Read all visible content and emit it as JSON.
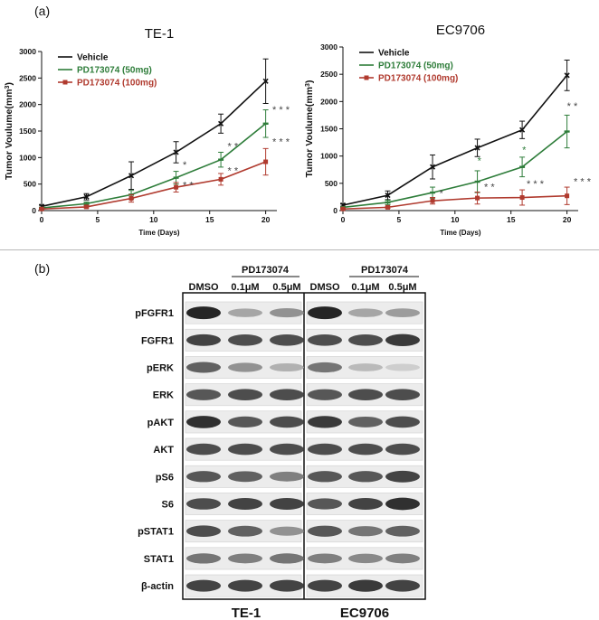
{
  "panel_a_label": "(a)",
  "panel_b_label": "(b)",
  "chart_data": [
    {
      "type": "line",
      "title": "TE-1",
      "xlabel": "Time (Days)",
      "ylabel_main": "Tumor Voulume(mm",
      "ylabel_sup": "3",
      "ylabel_end": ")",
      "xlim": [
        0,
        21
      ],
      "ylim": [
        0,
        3000
      ],
      "xticks": [
        0,
        5,
        10,
        15,
        20
      ],
      "yticks": [
        0,
        500,
        1000,
        1500,
        2000,
        2500,
        3000
      ],
      "x": [
        0,
        4,
        8,
        12,
        16,
        20
      ],
      "series": [
        {
          "name": "Vehicle",
          "color": "#111111",
          "marker": "x",
          "values": [
            80,
            260,
            660,
            1100,
            1640,
            2440
          ],
          "errors": [
            20,
            60,
            260,
            200,
            180,
            420
          ]
        },
        {
          "name": "PD173074 (50mg)",
          "color": "#2e7d3a",
          "marker": "bar",
          "values": [
            50,
            130,
            300,
            620,
            960,
            1640
          ],
          "errors": [
            15,
            30,
            80,
            120,
            140,
            260
          ]
        },
        {
          "name": "PD173074 (100mg)",
          "color": "#b03a2e",
          "marker": "square",
          "values": [
            30,
            70,
            230,
            440,
            590,
            920
          ],
          "errors": [
            10,
            20,
            70,
            90,
            110,
            250
          ]
        }
      ],
      "annotations": [
        {
          "x": 12.6,
          "y": 800,
          "text": "*",
          "color": "#444444"
        },
        {
          "x": 12.6,
          "y": 420,
          "text": "* *",
          "color": "#444444"
        },
        {
          "x": 16.6,
          "y": 1150,
          "text": "* *",
          "color": "#444444"
        },
        {
          "x": 16.6,
          "y": 690,
          "text": "* *",
          "color": "#444444"
        },
        {
          "x": 20.6,
          "y": 1840,
          "text": "* * *",
          "color": "#444444"
        },
        {
          "x": 20.6,
          "y": 1240,
          "text": "* * *",
          "color": "#444444"
        }
      ]
    },
    {
      "type": "line",
      "title": "EC9706",
      "xlabel": "Time (Days)",
      "ylabel_main": "Tumor Voulume(mm",
      "ylabel_sup": "3",
      "ylabel_end": ")",
      "xlim": [
        0,
        21
      ],
      "ylim": [
        0,
        3000
      ],
      "xticks": [
        0,
        5,
        10,
        15,
        20
      ],
      "yticks": [
        0,
        500,
        1000,
        1500,
        2000,
        2500,
        3000
      ],
      "x": [
        0,
        4,
        8,
        12,
        16,
        20
      ],
      "series": [
        {
          "name": "Vehicle",
          "color": "#111111",
          "marker": "x",
          "values": [
            100,
            280,
            800,
            1150,
            1480,
            2480
          ],
          "errors": [
            20,
            80,
            220,
            160,
            160,
            280
          ]
        },
        {
          "name": "PD173074 (50mg)",
          "color": "#2e7d3a",
          "marker": "bar",
          "values": [
            60,
            150,
            330,
            530,
            800,
            1450
          ],
          "errors": [
            15,
            40,
            100,
            200,
            180,
            300
          ]
        },
        {
          "name": "PD173074 (100mg)",
          "color": "#b03a2e",
          "marker": "square",
          "values": [
            30,
            60,
            180,
            230,
            240,
            270
          ],
          "errors": [
            10,
            20,
            60,
            110,
            140,
            160
          ]
        }
      ],
      "annotations": [
        {
          "x": 12.0,
          "y": 850,
          "text": "*",
          "color": "#2e7d3a"
        },
        {
          "x": 12.6,
          "y": 370,
          "text": "* *",
          "color": "#444444"
        },
        {
          "x": 8.6,
          "y": 260,
          "text": "*",
          "color": "#444444"
        },
        {
          "x": 16.0,
          "y": 1050,
          "text": "*",
          "color": "#2e7d3a"
        },
        {
          "x": 16.4,
          "y": 430,
          "text": "* * *",
          "color": "#444444"
        },
        {
          "x": 20.0,
          "y": 1860,
          "text": "* *",
          "color": "#444444"
        },
        {
          "x": 20.6,
          "y": 470,
          "text": "* * *",
          "color": "#444444"
        }
      ]
    }
  ],
  "blot": {
    "header_group": "PD173074",
    "lanes": [
      "DMSO",
      "0.1μM",
      "0.5μM",
      "DMSO",
      "0.1μM",
      "0.5μM"
    ],
    "cell_lines": [
      "TE-1",
      "EC9706"
    ],
    "rows": [
      {
        "label": "pFGFR1",
        "intensity": [
          1.0,
          0.35,
          0.45,
          1.0,
          0.35,
          0.4
        ]
      },
      {
        "label": "FGFR1",
        "intensity": [
          0.85,
          0.8,
          0.8,
          0.8,
          0.8,
          0.9
        ]
      },
      {
        "label": "pERK",
        "intensity": [
          0.7,
          0.45,
          0.3,
          0.6,
          0.25,
          0.15
        ]
      },
      {
        "label": "ERK",
        "intensity": [
          0.75,
          0.8,
          0.8,
          0.75,
          0.8,
          0.8
        ]
      },
      {
        "label": "pAKT",
        "intensity": [
          0.95,
          0.75,
          0.8,
          0.9,
          0.7,
          0.8
        ]
      },
      {
        "label": "AKT",
        "intensity": [
          0.8,
          0.8,
          0.8,
          0.8,
          0.8,
          0.8
        ]
      },
      {
        "label": "pS6",
        "intensity": [
          0.75,
          0.7,
          0.55,
          0.75,
          0.75,
          0.85
        ]
      },
      {
        "label": "S6",
        "intensity": [
          0.8,
          0.85,
          0.85,
          0.75,
          0.85,
          0.95
        ]
      },
      {
        "label": "pSTAT1",
        "intensity": [
          0.8,
          0.7,
          0.45,
          0.75,
          0.6,
          0.7
        ]
      },
      {
        "label": "STAT1",
        "intensity": [
          0.6,
          0.55,
          0.6,
          0.55,
          0.5,
          0.55
        ]
      },
      {
        "label": "β-actin",
        "intensity": [
          0.85,
          0.85,
          0.85,
          0.85,
          0.9,
          0.85
        ]
      }
    ]
  }
}
